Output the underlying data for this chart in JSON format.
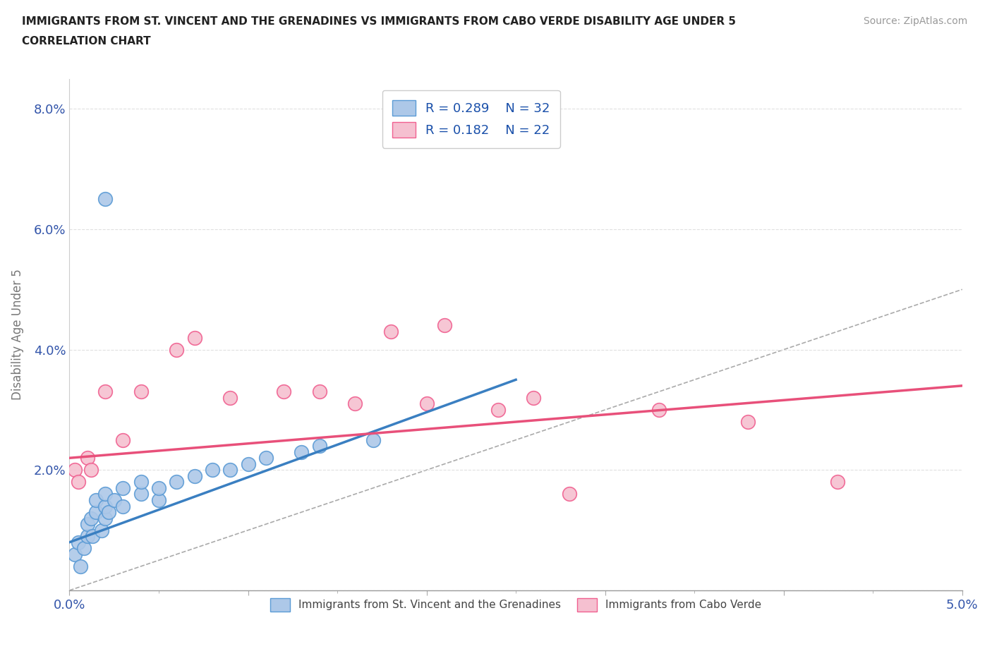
{
  "title_line1": "IMMIGRANTS FROM ST. VINCENT AND THE GRENADINES VS IMMIGRANTS FROM CABO VERDE DISABILITY AGE UNDER 5",
  "title_line2": "CORRELATION CHART",
  "source": "Source: ZipAtlas.com",
  "ylabel": "Disability Age Under 5",
  "xlim": [
    0.0,
    0.05
  ],
  "ylim": [
    0.0,
    0.085
  ],
  "blue_R": 0.289,
  "blue_N": 32,
  "pink_R": 0.182,
  "pink_N": 22,
  "blue_color": "#adc8e8",
  "pink_color": "#f5c0d0",
  "blue_edge_color": "#5b9bd5",
  "pink_edge_color": "#f06090",
  "blue_line_color": "#3a7fc1",
  "pink_line_color": "#e8507a",
  "dashed_line_color": "#aaaaaa",
  "legend_text_color": "#1a50aa",
  "tick_color": "#3355aa",
  "background_color": "#ffffff",
  "grid_color": "#e0e0e0",
  "blue_scatter_x": [
    0.0003,
    0.0005,
    0.0006,
    0.0008,
    0.001,
    0.001,
    0.0012,
    0.0013,
    0.0015,
    0.0015,
    0.0018,
    0.002,
    0.002,
    0.002,
    0.0022,
    0.0025,
    0.003,
    0.003,
    0.004,
    0.004,
    0.005,
    0.005,
    0.006,
    0.007,
    0.008,
    0.009,
    0.01,
    0.011,
    0.013,
    0.014,
    0.017,
    0.002
  ],
  "blue_scatter_y": [
    0.006,
    0.008,
    0.004,
    0.007,
    0.009,
    0.011,
    0.012,
    0.009,
    0.013,
    0.015,
    0.01,
    0.012,
    0.014,
    0.016,
    0.013,
    0.015,
    0.014,
    0.017,
    0.016,
    0.018,
    0.015,
    0.017,
    0.018,
    0.019,
    0.02,
    0.02,
    0.021,
    0.022,
    0.023,
    0.024,
    0.025,
    0.065
  ],
  "pink_scatter_x": [
    0.0003,
    0.0005,
    0.001,
    0.0012,
    0.002,
    0.003,
    0.004,
    0.006,
    0.007,
    0.009,
    0.012,
    0.014,
    0.016,
    0.018,
    0.02,
    0.021,
    0.024,
    0.026,
    0.028,
    0.033,
    0.038,
    0.043
  ],
  "pink_scatter_y": [
    0.02,
    0.018,
    0.022,
    0.02,
    0.033,
    0.025,
    0.033,
    0.04,
    0.042,
    0.032,
    0.033,
    0.033,
    0.031,
    0.043,
    0.031,
    0.044,
    0.03,
    0.032,
    0.016,
    0.03,
    0.028,
    0.018
  ],
  "blue_trendline_x": [
    0.0,
    0.025
  ],
  "blue_trendline_y": [
    0.008,
    0.035
  ],
  "pink_trendline_x": [
    0.0,
    0.05
  ],
  "pink_trendline_y": [
    0.022,
    0.034
  ],
  "dashed_line_x": [
    0.0,
    0.05
  ],
  "dashed_line_y": [
    0.0,
    0.05
  ]
}
